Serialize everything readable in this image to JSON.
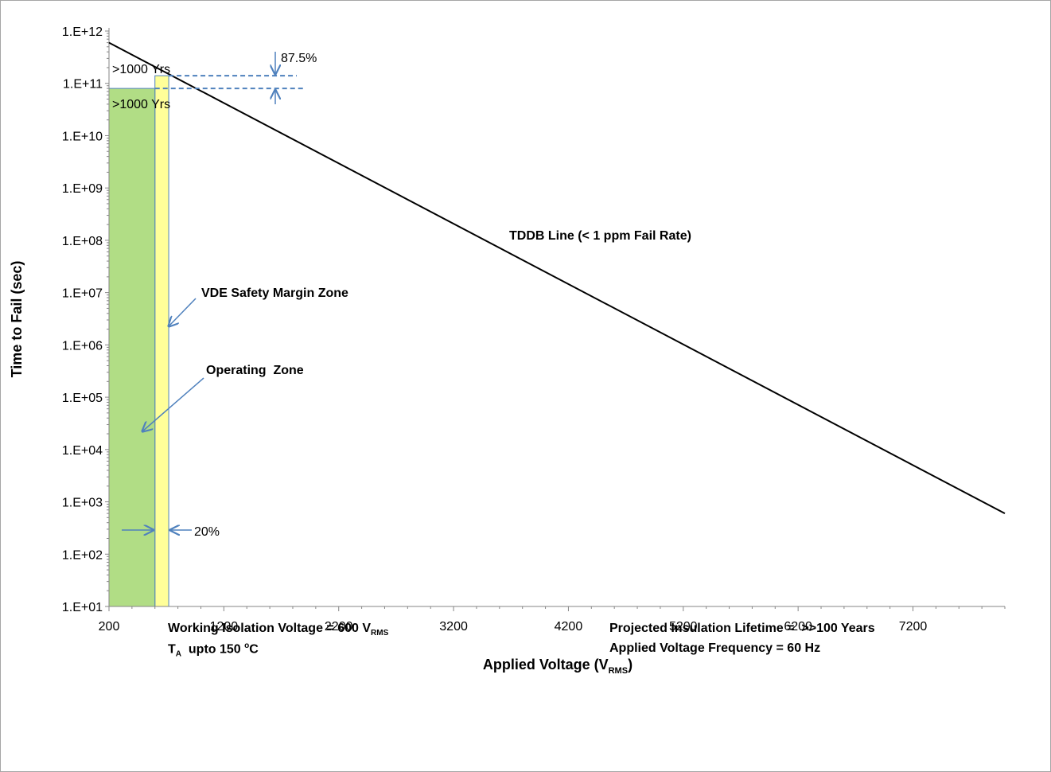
{
  "chart_data": {
    "type": "line",
    "xlabel": {
      "main": "Applied Voltage (V",
      "sub": "RMS",
      "close": ")"
    },
    "ylabel": "Time to Fail (sec)",
    "xlim": [
      200,
      8000
    ],
    "ylim": [
      10,
      1000000000000
    ],
    "yscale": "log",
    "x_ticks": [
      200,
      1200,
      2200,
      3200,
      4200,
      5200,
      6200,
      7200
    ],
    "y_ticks": [
      10,
      100,
      1000,
      10000,
      100000,
      1000000,
      10000000,
      100000000,
      1000000000,
      10000000000,
      100000000000,
      1000000000000
    ],
    "y_tick_labels": [
      "1.E+01",
      "1.E+02",
      "1.E+03",
      "1.E+04",
      "1.E+05",
      "1.E+06",
      "1.E+07",
      "1.E+08",
      "1.E+09",
      "1.E+10",
      "1.E+11",
      "1.E+12"
    ],
    "grid": false,
    "legend": "none",
    "series": [
      {
        "name": "TDDB Line (< 1 ppm Fail Rate)",
        "x": [
          200,
          8000
        ],
        "y": [
          600000000000,
          600
        ],
        "color": "#000000"
      }
    ],
    "zones": [
      {
        "name": "Operating  Zone",
        "x": [
          200,
          600
        ],
        "y_top": 80000000000,
        "color": "#b1dd85"
      },
      {
        "name": "VDE Safety Margin Zone",
        "x": [
          600,
          720
        ],
        "y_top": 140000000000,
        "color": "#ffff99"
      }
    ],
    "annotations": {
      "lifetime_upper": ">1000 Yrs",
      "lifetime_lower": ">1000 Yrs",
      "margin_time": "87.5%",
      "margin_voltage": "20%",
      "tddb_label": "TDDB Line (< 1 ppm Fail Rate)",
      "vde_label": "VDE Safety Margin Zone",
      "operating_label": "Operating  Zone"
    },
    "colors": {
      "arrow": "#4f81bd",
      "operating_fill": "#b1dd85",
      "vde_fill": "#ffff99",
      "line": "#000000"
    }
  },
  "footer": {
    "working_voltage": {
      "main": "Working Isolation Voltage = 600 V",
      "sub": "RMS"
    },
    "temperature": {
      "pre": "T",
      "sub": "A",
      "mid": "  upto 150 ",
      "sup": "o",
      "post": "C"
    },
    "lifetime": "Projected Insulation Lifetime =  >>100 Years",
    "frequency": "Applied Voltage Frequency = 60 Hz"
  }
}
